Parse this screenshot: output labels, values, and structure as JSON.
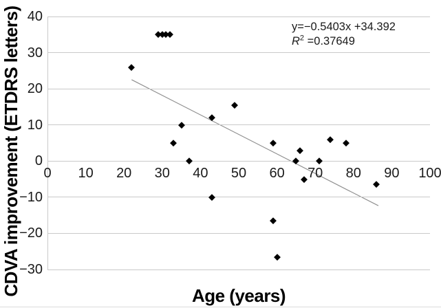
{
  "figure": {
    "y_axis_title": "CDVA improvement (ETDRS letters)",
    "x_axis_title": "Age (years)",
    "annotation": {
      "equation_line": "y=−0.5403x +34.392",
      "r_symbol": "R",
      "r_superscript": "2",
      "r_value": " =0.37649"
    }
  },
  "chart_data": {
    "type": "scatter",
    "title": "",
    "xlabel": "Age (years)",
    "ylabel": "CDVA improvement (ETDRS letters)",
    "xlim": [
      0,
      100
    ],
    "ylim": [
      -30,
      40
    ],
    "x_ticks": [
      0,
      10,
      20,
      30,
      40,
      50,
      60,
      70,
      80,
      90,
      100
    ],
    "y_ticks": [
      40,
      30,
      20,
      10,
      0,
      -10,
      -20,
      -30
    ],
    "grid": true,
    "legend": false,
    "points": [
      [
        22,
        26
      ],
      [
        29,
        35
      ],
      [
        30,
        35
      ],
      [
        31,
        35
      ],
      [
        32,
        35
      ],
      [
        33,
        5
      ],
      [
        35,
        10
      ],
      [
        37,
        0
      ],
      [
        43,
        12
      ],
      [
        43,
        -10
      ],
      [
        49,
        15.5
      ],
      [
        59,
        5
      ],
      [
        59,
        -16.5
      ],
      [
        60,
        -26.5
      ],
      [
        65,
        0
      ],
      [
        66,
        3
      ],
      [
        67,
        -5
      ],
      [
        71,
        0
      ],
      [
        74,
        6
      ],
      [
        78,
        5
      ],
      [
        86,
        -6.5
      ]
    ],
    "trendline": {
      "slope": -0.5403,
      "intercept": 34.392,
      "x_start": 22,
      "x_end": 86.5,
      "equation_text": "y=−0.5403x +34.392",
      "r_squared": 0.37649,
      "r_squared_text": "R2 =0.37649"
    },
    "colors": {
      "marker": "#000000",
      "trendline": "#8f8f8f",
      "gridline": "#c9c9c9",
      "text": "#000000"
    }
  }
}
